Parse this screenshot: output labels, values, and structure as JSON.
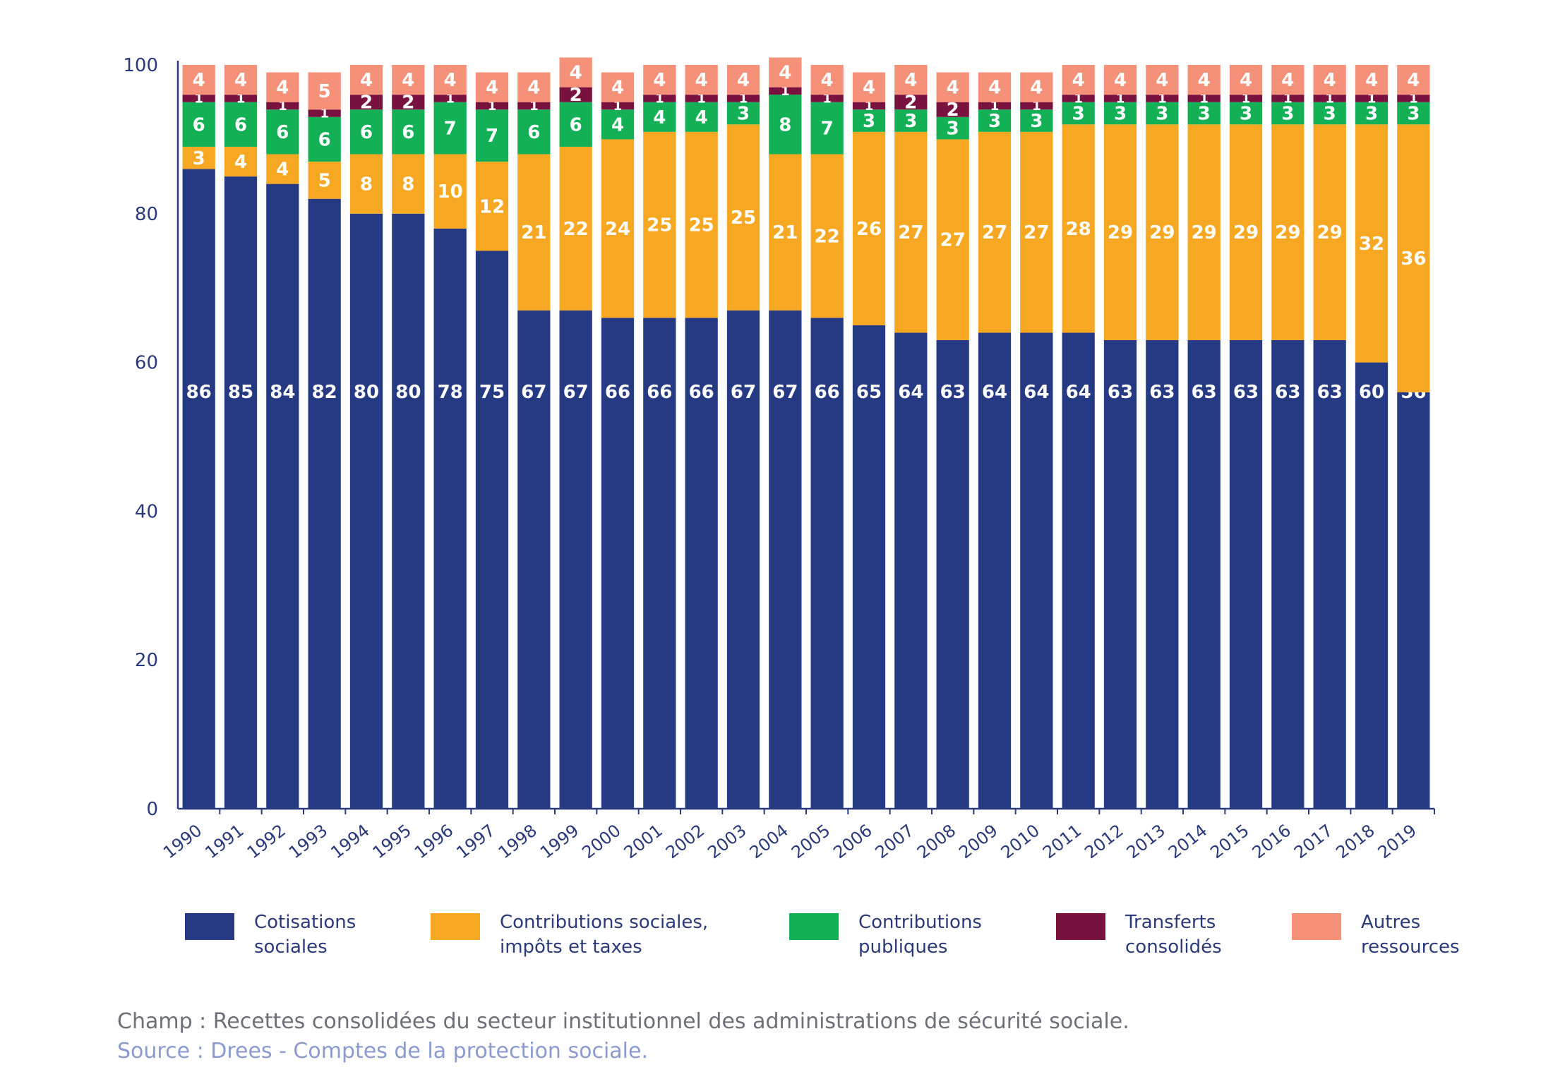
{
  "chart_data": {
    "type": "bar",
    "stacked": true,
    "categories": [
      "1990",
      "1991",
      "1992",
      "1993",
      "1994",
      "1995",
      "1996",
      "1997",
      "1998",
      "1999",
      "2000",
      "2001",
      "2002",
      "2003",
      "2004",
      "2005",
      "2006",
      "2007",
      "2008",
      "2009",
      "2010",
      "2011",
      "2012",
      "2013",
      "2014",
      "2015",
      "2016",
      "2017",
      "2018",
      "2019"
    ],
    "ylim": [
      0,
      100
    ],
    "yticks": [
      "0",
      "20",
      "40",
      "60",
      "80",
      "100"
    ],
    "grid": false,
    "legend_position": "bottom",
    "series": [
      {
        "name": "Cotisations sociales",
        "color": "#263a84",
        "label_color": "#ffffff",
        "values": [
          86,
          85,
          84,
          82,
          80,
          80,
          78,
          75,
          67,
          67,
          66,
          66,
          66,
          67,
          67,
          66,
          65,
          64,
          63,
          64,
          64,
          64,
          63,
          63,
          63,
          63,
          63,
          63,
          60,
          56
        ]
      },
      {
        "name": "Contributions sociales, impôts et taxes",
        "color": "#f7a823",
        "label_color": "#ffffff",
        "values": [
          3,
          4,
          4,
          5,
          8,
          8,
          10,
          12,
          21,
          22,
          24,
          25,
          25,
          25,
          21,
          22,
          26,
          27,
          27,
          27,
          27,
          28,
          29,
          29,
          29,
          29,
          29,
          29,
          32,
          36
        ]
      },
      {
        "name": "Contributions publiques",
        "color": "#13b056",
        "label_color": "#ffffff",
        "values": [
          6,
          6,
          6,
          6,
          6,
          6,
          7,
          7,
          6,
          6,
          4,
          4,
          4,
          3,
          8,
          7,
          3,
          3,
          3,
          3,
          3,
          3,
          3,
          3,
          3,
          3,
          3,
          3,
          3,
          3
        ]
      },
      {
        "name": "Transferts consolidés",
        "color": "#7a1240",
        "label_color": "#ffffff",
        "values": [
          1,
          1,
          1,
          1,
          2,
          2,
          1,
          1,
          1,
          2,
          1,
          1,
          1,
          1,
          1,
          1,
          1,
          2,
          2,
          1,
          1,
          1,
          1,
          1,
          1,
          1,
          1,
          1,
          1,
          1
        ]
      },
      {
        "name": "Autres ressources",
        "color": "#f59178",
        "label_color": "#ffffff",
        "values": [
          4,
          4,
          4,
          5,
          4,
          4,
          4,
          4,
          4,
          4,
          4,
          4,
          4,
          4,
          4,
          4,
          4,
          4,
          4,
          4,
          4,
          4,
          4,
          4,
          4,
          4,
          4,
          4,
          4,
          4
        ]
      }
    ]
  },
  "legend": [
    {
      "line1": "Cotisations",
      "line2": "sociales",
      "color": "#263a84"
    },
    {
      "line1": "Contributions sociales,",
      "line2": "impôts et taxes",
      "color": "#f7a823"
    },
    {
      "line1": "Contributions",
      "line2": "publiques",
      "color": "#13b056"
    },
    {
      "line1": "Transferts",
      "line2": "consolidés",
      "color": "#7a1240"
    },
    {
      "line1": "Autres",
      "line2": "ressources",
      "color": "#f59178"
    }
  ],
  "footer": {
    "champ": "Champ : Recettes consolidées du secteur institutionnel des administrations de sécurité sociale.",
    "source": "Source : Drees - Comptes de la protection sociale."
  }
}
